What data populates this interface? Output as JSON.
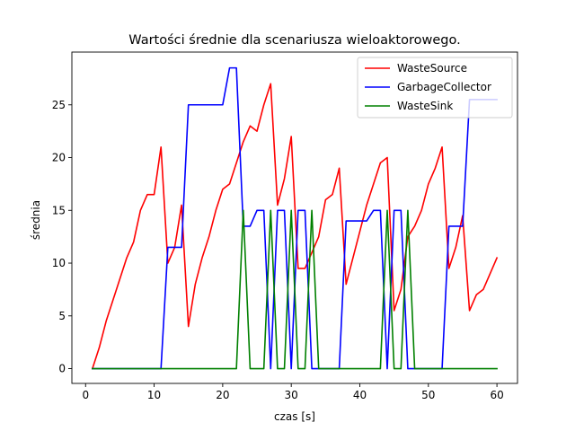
{
  "chart_data": {
    "type": "line",
    "title": "Wartości średnie dla scenariusza wieloaktorowego.",
    "xlabel": "czas [s]",
    "ylabel": "średnia",
    "xlim": [
      -2,
      63
    ],
    "ylim": [
      -1.4,
      30
    ],
    "xticks": [
      0,
      10,
      20,
      30,
      40,
      50,
      60
    ],
    "yticks": [
      0,
      5,
      10,
      15,
      20,
      25
    ],
    "grid": false,
    "legend_position": "top-right",
    "x": [
      1,
      2,
      3,
      4,
      5,
      6,
      7,
      8,
      9,
      10,
      11,
      12,
      13,
      14,
      15,
      16,
      17,
      18,
      19,
      20,
      21,
      22,
      23,
      24,
      25,
      26,
      27,
      28,
      29,
      30,
      31,
      32,
      33,
      34,
      35,
      36,
      37,
      38,
      39,
      40,
      41,
      42,
      43,
      44,
      45,
      46,
      47,
      48,
      49,
      50,
      51,
      52,
      53,
      54,
      55,
      56,
      57,
      58,
      59,
      60
    ],
    "series": [
      {
        "name": "WasteSource",
        "color": "#ff0000",
        "values": [
          0,
          2,
          4.5,
          6.5,
          8.5,
          10.5,
          12,
          15,
          16.5,
          16.5,
          21,
          10,
          11.5,
          15.5,
          4,
          8,
          10.5,
          12.5,
          15,
          17,
          17.5,
          19.5,
          21.5,
          23,
          22.5,
          25,
          27,
          15.5,
          18,
          22,
          9.5,
          9.5,
          11,
          12.5,
          16,
          16.5,
          19,
          8,
          10.5,
          13,
          15.5,
          17.5,
          19.5,
          20,
          5.5,
          7.5,
          12.5,
          13.5,
          15,
          17.5,
          19,
          21,
          9.5,
          11.5,
          14.5,
          5.5,
          7,
          7.5,
          9,
          10.5
        ]
      },
      {
        "name": "GarbageCollector",
        "color": "#0000ff",
        "values": [
          0,
          0,
          0,
          0,
          0,
          0,
          0,
          0,
          0,
          0,
          0,
          11.5,
          11.5,
          11.5,
          25,
          25,
          25,
          25,
          25,
          25,
          28.5,
          28.5,
          13.5,
          13.5,
          15,
          15,
          0,
          15,
          15,
          0,
          15,
          15,
          0,
          0,
          0,
          0,
          0,
          14,
          14,
          14,
          14,
          15,
          15,
          0,
          15,
          15,
          0,
          0,
          0,
          0,
          0,
          0,
          13.5,
          13.5,
          13.5,
          25.5,
          25.5,
          25.5,
          25.5,
          25.5
        ]
      },
      {
        "name": "WasteSink",
        "color": "#008000",
        "values": [
          0,
          0,
          0,
          0,
          0,
          0,
          0,
          0,
          0,
          0,
          0,
          0,
          0,
          0,
          0,
          0,
          0,
          0,
          0,
          0,
          0,
          0,
          15,
          0,
          0,
          0,
          15,
          0,
          0,
          15,
          0,
          0,
          15,
          0,
          0,
          0,
          0,
          0,
          0,
          0,
          0,
          0,
          0,
          15,
          0,
          0,
          15,
          0,
          0,
          0,
          0,
          0,
          0,
          0,
          0,
          0,
          0,
          0,
          0,
          0
        ]
      }
    ]
  }
}
